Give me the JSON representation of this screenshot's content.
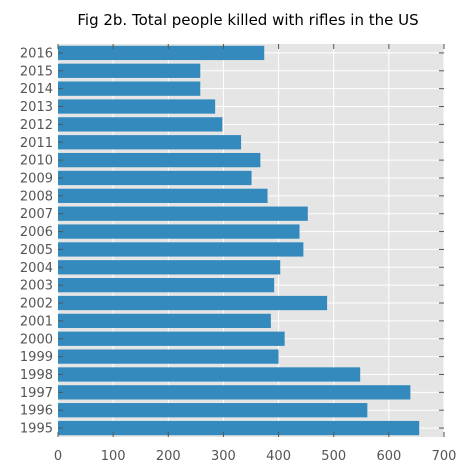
{
  "chart_data": {
    "type": "bar",
    "orientation": "horizontal",
    "title": "Fig 2b. Total people killed with rifles in the US",
    "xlabel": "",
    "ylabel": "",
    "categories": [
      "1995",
      "1996",
      "1997",
      "1998",
      "1999",
      "2000",
      "2001",
      "2002",
      "2003",
      "2004",
      "2005",
      "2006",
      "2007",
      "2008",
      "2009",
      "2010",
      "2011",
      "2012",
      "2013",
      "2014",
      "2015",
      "2016"
    ],
    "values": [
      655,
      561,
      639,
      548,
      400,
      411,
      386,
      488,
      392,
      403,
      445,
      438,
      453,
      380,
      351,
      367,
      332,
      298,
      285,
      258,
      258,
      374
    ],
    "xlim": [
      0,
      700
    ],
    "xticks": [
      "0",
      "100",
      "200",
      "300",
      "400",
      "500",
      "600",
      "700"
    ],
    "grid": true,
    "colors": {
      "bar": "#348abd",
      "plot_background": "#e5e5e5",
      "grid": "#ffffff"
    }
  }
}
